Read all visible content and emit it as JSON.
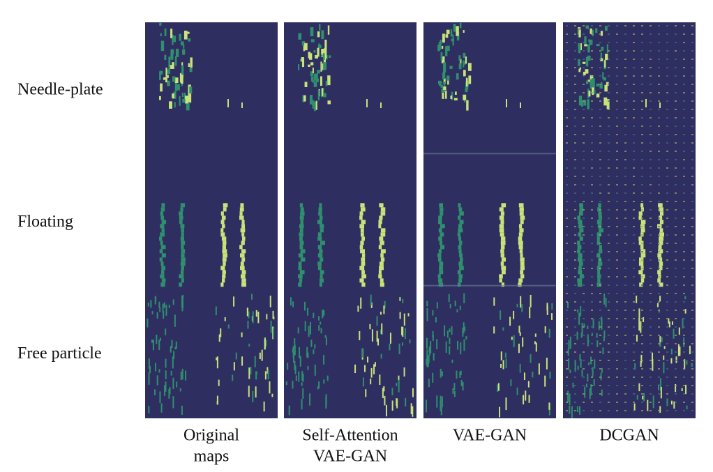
{
  "row_labels": [
    "Needle-plate",
    "Floating",
    "Free particle"
  ],
  "column_labels": [
    [
      "Original",
      "maps"
    ],
    [
      "Self-Attention",
      "VAE-GAN"
    ],
    [
      "VAE-GAN"
    ],
    [
      "DCGAN"
    ]
  ]
}
